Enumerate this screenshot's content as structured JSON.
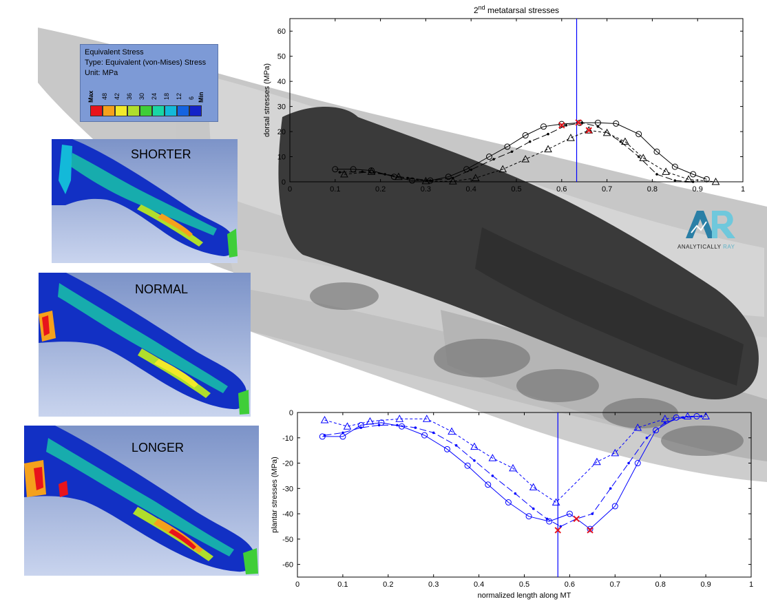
{
  "fea_legend": {
    "title": "Equivalent Stress",
    "type_line": "Type: Equivalent (von-Mises) Stress",
    "unit_line": "Unit: MPa",
    "tick_max": "Max",
    "tick_min": "Min",
    "ticks": [
      "48",
      "42",
      "36",
      "30",
      "24",
      "18",
      "12",
      "6"
    ],
    "swatch_colors": [
      "#e8141b",
      "#f5a11c",
      "#f2e92a",
      "#b0de2c",
      "#3fce39",
      "#19d6a6",
      "#13b9d9",
      "#1463e0",
      "#1322c8"
    ]
  },
  "panels": {
    "shorter_label": "SHORTER",
    "normal_label": "NORMAL",
    "longer_label": "LONGER"
  },
  "logo": {
    "letters": "AR",
    "text_main": "ANALYTICALLY ",
    "text_accent": "RAY",
    "colors": {
      "a": "#2a7fa6",
      "r": "#6fc8dc",
      "text": "#222222",
      "accent": "#5fb3c8"
    }
  },
  "chart_data": [
    {
      "type": "line",
      "title": "2nd metatarsal stresses",
      "title_base": "2",
      "title_sup": "nd",
      "title_rest": " metatarsal stresses",
      "xlabel": "",
      "ylabel": "dorsal stresses (MPa)",
      "xlim": [
        0,
        1
      ],
      "ylim": [
        0,
        65
      ],
      "xticks": [
        0,
        0.1,
        0.2,
        0.3,
        0.4,
        0.5,
        0.6,
        0.7,
        0.8,
        0.9,
        1
      ],
      "yticks": [
        0,
        10,
        20,
        30,
        40,
        50,
        60
      ],
      "grid": false,
      "color": "#000000",
      "vline_x": 0.633,
      "vline_color": "#0000ff",
      "series": [
        {
          "style": "solid",
          "marker": "circle",
          "x": [
            0.1,
            0.14,
            0.18,
            0.23,
            0.27,
            0.31,
            0.35,
            0.39,
            0.44,
            0.48,
            0.52,
            0.56,
            0.6,
            0.64,
            0.68,
            0.72,
            0.77,
            0.81,
            0.85,
            0.89,
            0.92
          ],
          "y": [
            5,
            5,
            4.5,
            2,
            0.5,
            0.5,
            2,
            5,
            10,
            14,
            18.5,
            22,
            23,
            23.5,
            23.5,
            23.2,
            19,
            12,
            6,
            3,
            1
          ]
        },
        {
          "style": "dashed",
          "marker": "dot",
          "x": [
            0.11,
            0.16,
            0.21,
            0.26,
            0.31,
            0.36,
            0.4,
            0.45,
            0.49,
            0.53,
            0.57,
            0.61,
            0.645,
            0.68,
            0.73,
            0.77,
            0.81,
            0.85,
            0.89
          ],
          "y": [
            3.8,
            4,
            3,
            1.5,
            0.5,
            1.5,
            4.8,
            9,
            12,
            16,
            19,
            22.5,
            23.5,
            22,
            16,
            10,
            3,
            0.5,
            0
          ]
        },
        {
          "style": "dotted",
          "marker": "triangle",
          "x": [
            0.12,
            0.18,
            0.24,
            0.3,
            0.36,
            0.41,
            0.47,
            0.52,
            0.57,
            0.62,
            0.66,
            0.7,
            0.74,
            0.78,
            0.83,
            0.88,
            0.94
          ],
          "y": [
            3,
            4,
            2,
            0.3,
            0.2,
            1.5,
            5,
            9,
            13,
            17.5,
            20.5,
            19.5,
            16,
            9.5,
            4,
            1,
            0
          ]
        }
      ],
      "peaks": [
        {
          "x": 0.6,
          "y": 22.5
        },
        {
          "x": 0.637,
          "y": 23.6
        },
        {
          "x": 0.66,
          "y": 20.5
        }
      ]
    },
    {
      "type": "line",
      "title": "",
      "xlabel": "normalized length along MT",
      "ylabel": "plantar stresses (MPa)",
      "xlim": [
        0,
        1
      ],
      "ylim": [
        -65,
        0
      ],
      "xticks": [
        0,
        0.1,
        0.2,
        0.3,
        0.4,
        0.5,
        0.6,
        0.7,
        0.8,
        0.9,
        1
      ],
      "yticks": [
        0,
        -10,
        -20,
        -30,
        -40,
        -50,
        -60
      ],
      "grid": false,
      "color": "#0000ff",
      "vline_x": 0.574,
      "vline_color": "#0000ff",
      "series": [
        {
          "style": "solid",
          "marker": "circle",
          "x": [
            0.055,
            0.1,
            0.14,
            0.185,
            0.23,
            0.28,
            0.33,
            0.375,
            0.42,
            0.465,
            0.51,
            0.555,
            0.6,
            0.645,
            0.7,
            0.75,
            0.79,
            0.835,
            0.88
          ],
          "y": [
            -9.5,
            -9.5,
            -5,
            -4,
            -5.5,
            -9,
            -14.5,
            -21,
            -28.5,
            -35.5,
            -41,
            -43,
            -40,
            -46,
            -37,
            -20,
            -7,
            -2,
            -1.5
          ]
        },
        {
          "style": "dashed",
          "marker": "dot",
          "x": [
            0.06,
            0.1,
            0.14,
            0.18,
            0.22,
            0.26,
            0.3,
            0.35,
            0.39,
            0.43,
            0.48,
            0.52,
            0.55,
            0.58,
            0.615,
            0.65,
            0.69,
            0.73,
            0.77,
            0.81,
            0.85,
            0.89
          ],
          "y": [
            -9,
            -8,
            -6,
            -5,
            -5,
            -6,
            -8,
            -13,
            -19,
            -25,
            -32,
            -38,
            -42,
            -45,
            -42,
            -40,
            -30,
            -20,
            -10,
            -4,
            -2,
            -1.5
          ]
        },
        {
          "style": "dotted",
          "marker": "triangle",
          "x": [
            0.06,
            0.11,
            0.16,
            0.225,
            0.285,
            0.34,
            0.39,
            0.43,
            0.475,
            0.52,
            0.57,
            0.66,
            0.7,
            0.75,
            0.81,
            0.86,
            0.9
          ],
          "y": [
            -3,
            -5.5,
            -3.5,
            -2.5,
            -2.5,
            -7.5,
            -13.5,
            -18,
            -22,
            -29.5,
            -35.5,
            -19.5,
            -16,
            -6,
            -2.5,
            -1.5,
            -1.5
          ]
        }
      ],
      "peaks": [
        {
          "x": 0.574,
          "y": -46.5
        },
        {
          "x": 0.615,
          "y": -42
        },
        {
          "x": 0.645,
          "y": -46.5
        }
      ]
    }
  ]
}
